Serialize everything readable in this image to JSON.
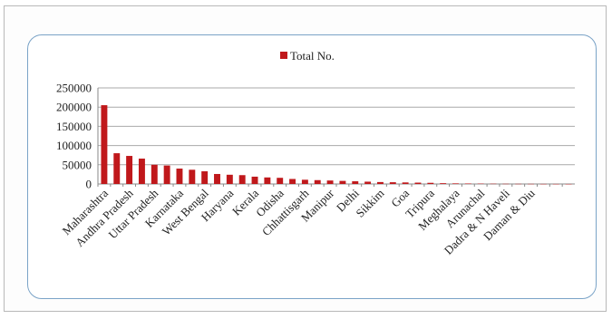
{
  "chart_data": {
    "type": "bar",
    "title": "",
    "xlabel": "",
    "ylabel": "",
    "legend": {
      "position": "top",
      "entries": [
        {
          "label": "Total No.",
          "color": "#c0181b"
        }
      ]
    },
    "grid": true,
    "ylim": [
      0,
      250000
    ],
    "yticks": [
      "250000",
      "200000",
      "150000",
      "100000",
      "50000",
      "0"
    ],
    "tick_labels": [
      "Maharashtra",
      "Andhra Pradesh",
      "Uttar Pradesh",
      "Karnataka",
      "West Bengal",
      "Haryana",
      "Kerala",
      "Odisha",
      "Chhattisgarh",
      "Manipur",
      "Delhi",
      "Sikkim",
      "Goa",
      "Tripura",
      "Meghalaya",
      "Arunachal",
      "Dadra & N Haveli",
      "Daman & Diu"
    ],
    "series": [
      {
        "name": "Total No.",
        "color": "#c0181b",
        "values": [
          205000,
          80000,
          73000,
          66000,
          50000,
          48000,
          40000,
          37000,
          33000,
          26000,
          24000,
          23000,
          19000,
          17000,
          16000,
          13000,
          11000,
          10000,
          9000,
          8000,
          7000,
          6000,
          5000,
          4500,
          4000,
          3500,
          3000,
          2000,
          1500,
          1200,
          900,
          700,
          500,
          400,
          300,
          200,
          150,
          100
        ]
      }
    ]
  }
}
